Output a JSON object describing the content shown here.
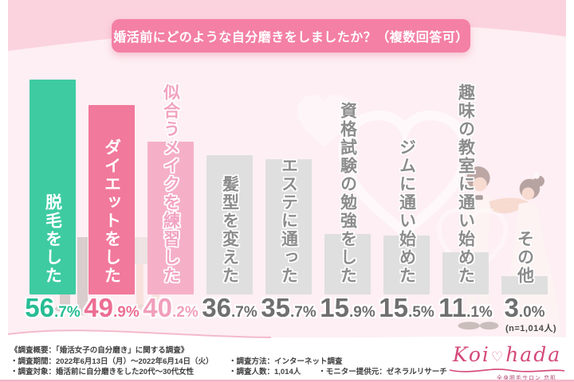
{
  "chart_data": {
    "type": "bar",
    "title": "婚活前にどのような自分磨きをしましたか？（複数回答可）",
    "unit": "%",
    "sample_note": "(n=1,014人)",
    "categories": [
      "脱毛をした",
      "ダイエットをした",
      "似合うメイクを練習した",
      "髪型を変えた",
      "エステに通った",
      "資格試験の勉強をした",
      "ジムに通い始めた",
      "趣味の教室に通い始めた",
      "その他"
    ],
    "values": [
      56.7,
      49.9,
      40.2,
      36.7,
      35.7,
      15.9,
      15.5,
      11.1,
      3.0
    ],
    "ylim": [
      0,
      60
    ],
    "grid": false,
    "legend": "none",
    "value_label_position": "below-bars",
    "bar_styles": [
      {
        "bar": "#3ecba2",
        "label": "#ffffff",
        "value": "#27bd94",
        "outlined": false
      },
      {
        "bar": "#f1799b",
        "label": "#ffffff",
        "value": "#ec6e93",
        "outlined": false
      },
      {
        "bar": "#f5b0c8",
        "label": "#f2a3c1",
        "value": "#f19fbc",
        "outlined": true
      },
      {
        "bar": "#dfdfdf",
        "label": "#8c8c8c",
        "value": "#6f6f6f",
        "outlined": true
      },
      {
        "bar": "#dfdfdf",
        "label": "#8c8c8c",
        "value": "#6f6f6f",
        "outlined": true
      },
      {
        "bar": "#dfdfdf",
        "label": "#8c8c8c",
        "value": "#6f6f6f",
        "outlined": true
      },
      {
        "bar": "#dfdfdf",
        "label": "#8c8c8c",
        "value": "#6f6f6f",
        "outlined": true
      },
      {
        "bar": "#dfdfdf",
        "label": "#8c8c8c",
        "value": "#6f6f6f",
        "outlined": true
      },
      {
        "bar": "#dfdfdf",
        "label": "#8c8c8c",
        "value": "#6f6f6f",
        "outlined": true
      }
    ]
  },
  "header": {
    "banner_bg": "#f480a6",
    "banner_text_color": "#ffffff"
  },
  "footer": {
    "overview": "《調査概要：「婚活女子の自分磨き」に関する調査》",
    "period": "・調査期間：2022年6月13日（月）～2022年6月14日（火）",
    "target": "・調査対象：婚活前に自分磨きをした20代～30代女性",
    "method": "・調査方法：インターネット調査",
    "respondents": "・調査人数：1,014人",
    "monitor": "・モニター提供元：ゼネラルリサーチ",
    "logo": {
      "word1": "Koi",
      "heart": "♡",
      "word2": "hada",
      "tagline": "全身脱毛サロン 恋肌"
    }
  },
  "colors": {
    "panel_bg": "#fdeff3",
    "panel_band": "#fbd3df",
    "accent_teal": "#3ecba2",
    "accent_pink": "#f1799b",
    "accent_light_pink": "#f5b0c8",
    "bar_gray": "#dfdfdf",
    "bottom_line": "#f3b9ca",
    "logo_pink": "#d4487a"
  }
}
